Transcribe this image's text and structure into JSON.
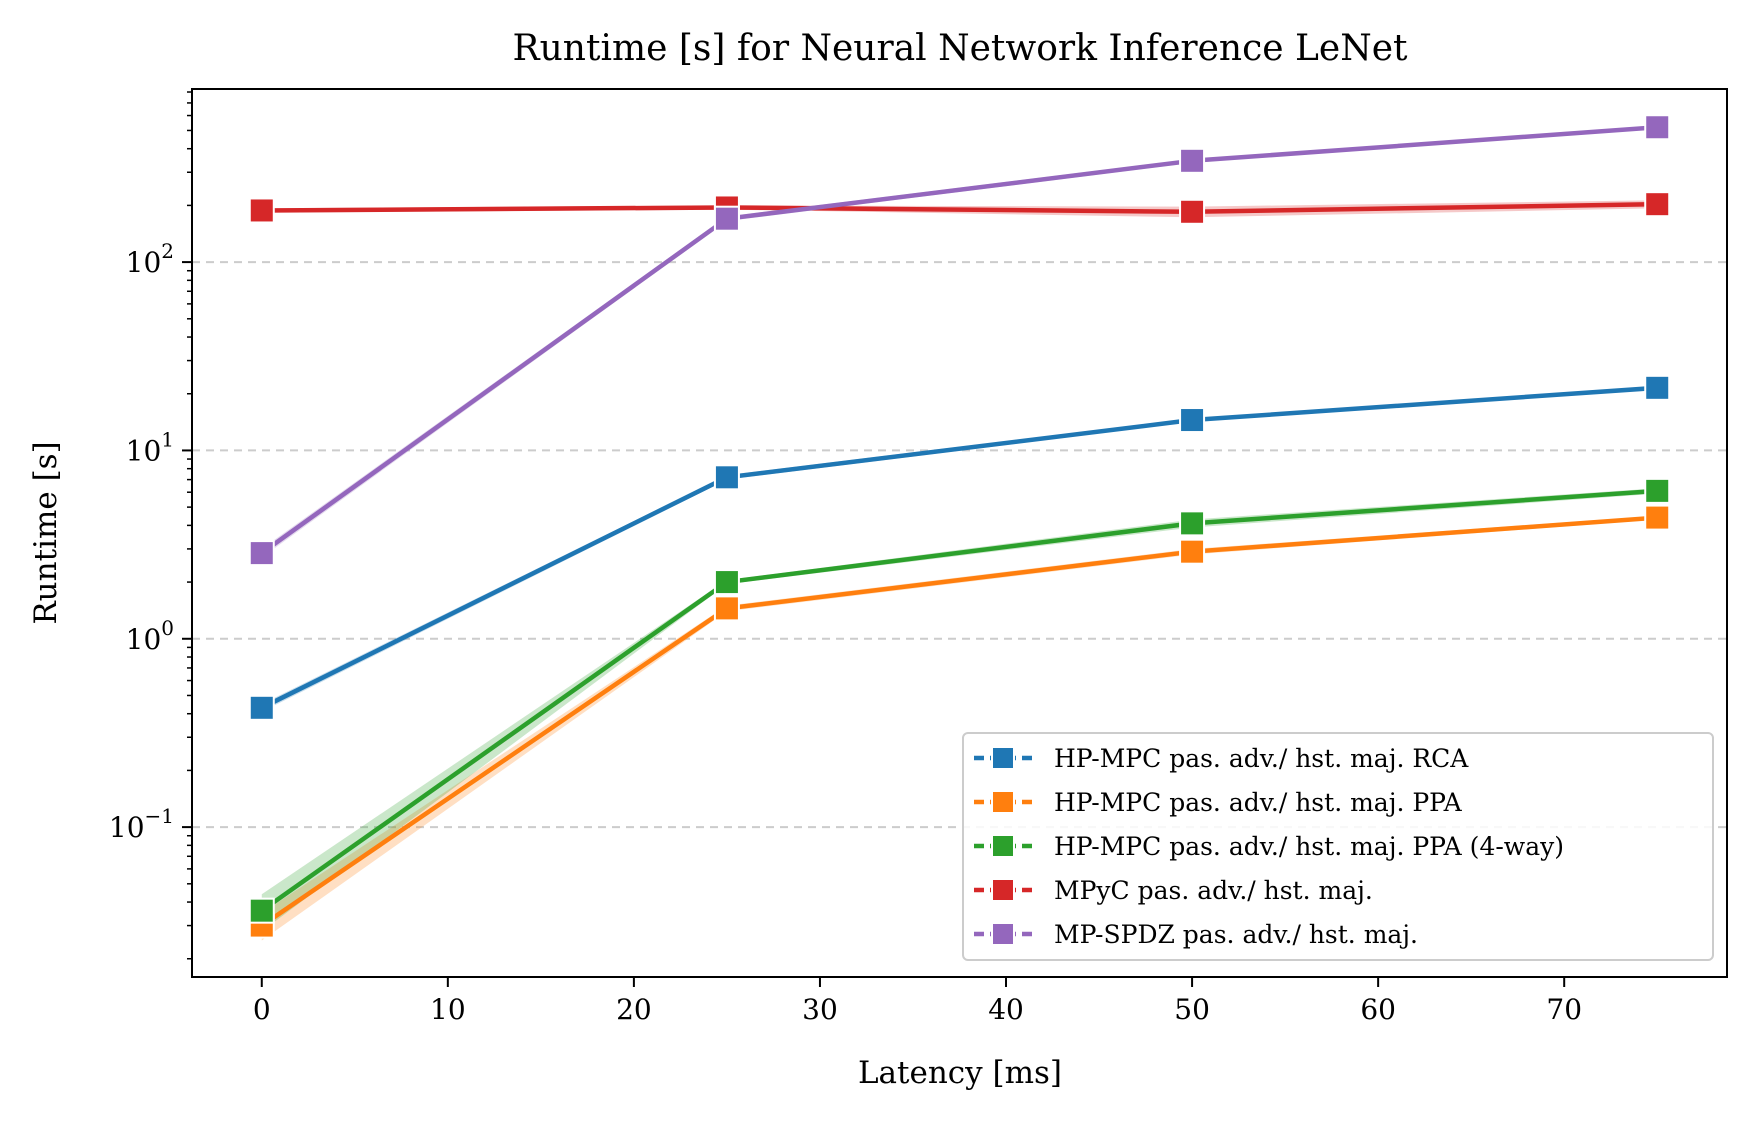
{
  "chart_data": {
    "type": "line",
    "title": "Runtime [s] for Neural Network Inference LeNet",
    "xlabel": "Latency [ms]",
    "ylabel": "Runtime [s]",
    "x": [
      0,
      25,
      50,
      75
    ],
    "xlim": [
      -3.75,
      78.75
    ],
    "ylim": [
      0.016,
      830
    ],
    "yscale": "log",
    "x_ticks": [
      0,
      10,
      20,
      30,
      40,
      50,
      60,
      70
    ],
    "y_ticks": [
      {
        "value": 0.1,
        "base": "10",
        "exp": "−1"
      },
      {
        "value": 1,
        "base": "10",
        "exp": "0"
      },
      {
        "value": 10,
        "base": "10",
        "exp": "1"
      },
      {
        "value": 100,
        "base": "10",
        "exp": "2"
      }
    ],
    "grid": "y dashed",
    "legend_position": "lower-right",
    "marker": "square",
    "series": [
      {
        "name": "HP-MPC pas. adv./ hst. maj. RCA",
        "color": "#1f77b4",
        "values": [
          0.43,
          7.2,
          14.5,
          21.5
        ],
        "ci": [
          0.02,
          0.2,
          0.3,
          0.5
        ]
      },
      {
        "name": "HP-MPC pas. adv./ hst. maj. PPA",
        "color": "#ff7f0e",
        "values": [
          0.03,
          1.45,
          2.9,
          4.4
        ],
        "ci": [
          0.005,
          0.05,
          0.1,
          0.1
        ]
      },
      {
        "name": "HP-MPC pas. adv./ hst. maj. PPA (4-way)",
        "color": "#2ca02c",
        "values": [
          0.036,
          2.0,
          4.1,
          6.1
        ],
        "ci": [
          0.008,
          0.05,
          0.2,
          0.2
        ]
      },
      {
        "name": "MPyC pas. adv./ hst. maj.",
        "color": "#d62728",
        "values": [
          188,
          195,
          185,
          203
        ],
        "ci": [
          5,
          5,
          12,
          10
        ]
      },
      {
        "name": "MP-SPDZ pas. adv./ hst. maj.",
        "color": "#9467bd",
        "values": [
          2.85,
          170,
          345,
          520
        ],
        "ci": [
          0.15,
          5,
          8,
          10
        ]
      }
    ]
  }
}
